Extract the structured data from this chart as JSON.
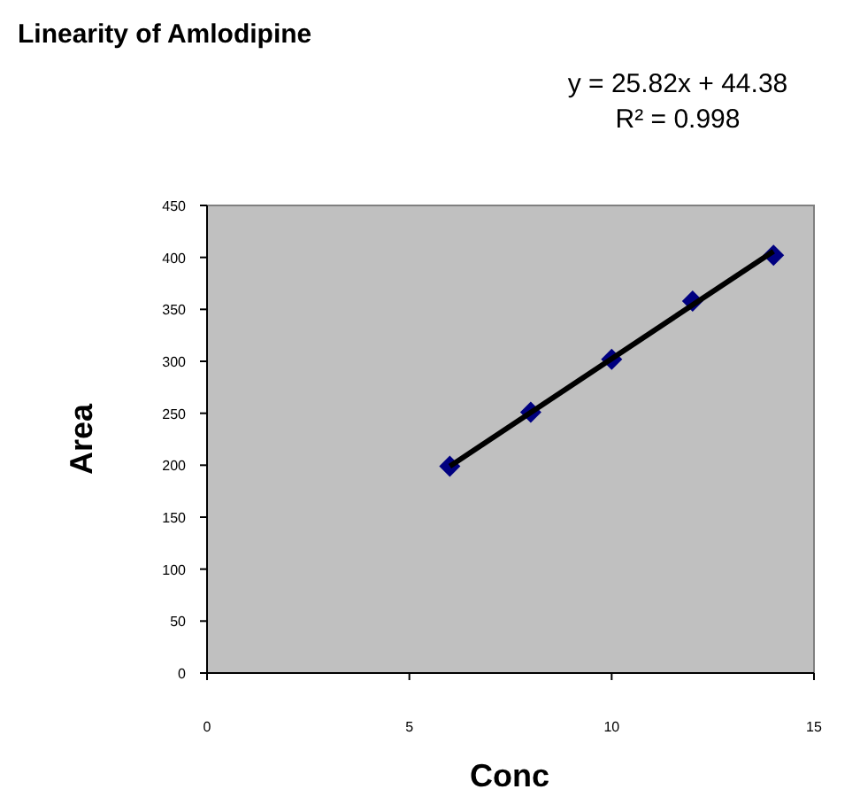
{
  "chart_data": {
    "type": "scatter",
    "title": "Linearity of  Amlodipine",
    "xlabel": "Conc",
    "ylabel": "Area",
    "annotations": [
      "y = 25.82x + 44.38",
      "R² = 0.998"
    ],
    "series": [
      {
        "x": [
          6,
          8,
          10,
          12,
          14
        ],
        "values": [
          199,
          251,
          302,
          358,
          402
        ],
        "color": "#000080",
        "marker": "diamond"
      },
      {
        "type": "line",
        "x": [
          6,
          14
        ],
        "values": [
          199,
          406
        ],
        "color": "#000000",
        "marker": "none"
      }
    ],
    "xlim": [
      0,
      15
    ],
    "xticks": [
      0,
      5,
      10,
      15
    ],
    "ylim": [
      0,
      450
    ],
    "yticks": [
      0,
      50,
      100,
      150,
      200,
      250,
      300,
      350,
      400,
      450
    ],
    "grid": false
  }
}
